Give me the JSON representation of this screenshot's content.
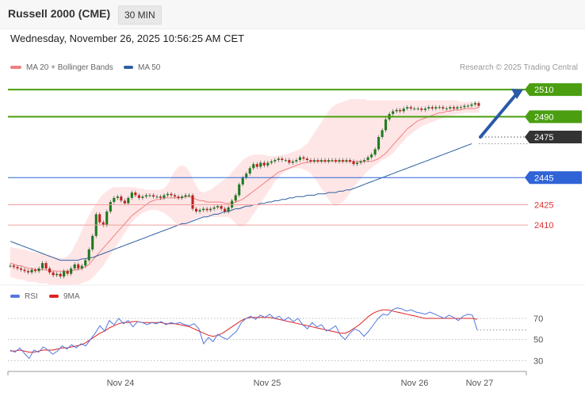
{
  "header": {
    "title": "Russell 2000 (CME)",
    "interval": "30 MIN"
  },
  "timestamp": "Wednesday, November 26, 2025 10:56:25 AM CET",
  "credit": "Research © 2025 Trading Central",
  "colors": {
    "resistance": "#4a9e10",
    "support": "#2f63d6",
    "minor": "#e03030",
    "ma20": "#f08080",
    "ma50": "#3060a0",
    "candle_up": "#1e7a1e",
    "candle_down": "#c02020",
    "arrow": "#2a5aa8",
    "rsi": "#5577dd",
    "rsi_ma": "#dd2222"
  },
  "chart_data": [
    {
      "type": "candlestick",
      "legend": [
        {
          "name": "MA 20 + Bollinger Bands",
          "color": "#f08080"
        },
        {
          "name": "MA 50",
          "color": "#3060a0"
        }
      ],
      "x_ticks": [
        "Nov 24",
        "Nov 25",
        "Nov 26",
        "Nov 27"
      ],
      "ylim": [
        2368,
        2520
      ],
      "levels": [
        {
          "value": 2510,
          "label": "2510",
          "kind": "resistance"
        },
        {
          "value": 2490,
          "label": "2490",
          "kind": "resistance"
        },
        {
          "value": 2475,
          "label": "2475",
          "kind": "last"
        },
        {
          "value": 2445,
          "label": "2445",
          "kind": "support"
        },
        {
          "value": 2425,
          "label": "2425",
          "kind": "minor"
        },
        {
          "value": 2410,
          "label": "2410",
          "kind": "minor"
        }
      ],
      "close": [
        2380,
        2379,
        2378,
        2377,
        2376,
        2375,
        2377,
        2376,
        2378,
        2382,
        2378,
        2375,
        2373,
        2374,
        2372,
        2376,
        2374,
        2378,
        2381,
        2378,
        2380,
        2384,
        2392,
        2402,
        2418,
        2412,
        2410,
        2420,
        2427,
        2430,
        2431,
        2428,
        2426,
        2430,
        2434,
        2432,
        2430,
        2431,
        2432,
        2432,
        2431,
        2431,
        2430,
        2432,
        2433,
        2432,
        2431,
        2430,
        2431,
        2432,
        2432,
        2422,
        2420,
        2421,
        2422,
        2421,
        2422,
        2423,
        2424,
        2422,
        2420,
        2423,
        2428,
        2432,
        2440,
        2445,
        2448,
        2452,
        2455,
        2453,
        2456,
        2454,
        2456,
        2457,
        2458,
        2459,
        2458,
        2458,
        2456,
        2457,
        2458,
        2460,
        2459,
        2458,
        2457,
        2458,
        2457,
        2458,
        2457,
        2458,
        2458,
        2457,
        2458,
        2457,
        2458,
        2457,
        2455,
        2456,
        2457,
        2458,
        2460,
        2462,
        2466,
        2475,
        2480,
        2488,
        2492,
        2494,
        2495,
        2494,
        2496,
        2497,
        2496,
        2496,
        2496,
        2495,
        2496,
        2497,
        2496,
        2497,
        2497,
        2496,
        2496,
        2497,
        2496,
        2497,
        2497,
        2498,
        2498,
        2499,
        2500,
        2498
      ],
      "ma20": [
        2382,
        2381,
        2380,
        2380,
        2379,
        2378,
        2378,
        2377,
        2377,
        2377,
        2377,
        2376,
        2376,
        2376,
        2376,
        2376,
        2376,
        2376,
        2377,
        2377,
        2378,
        2379,
        2381,
        2384,
        2387,
        2390,
        2393,
        2396,
        2399,
        2402,
        2405,
        2408,
        2411,
        2414,
        2417,
        2419,
        2421,
        2423,
        2425,
        2427,
        2428,
        2429,
        2429,
        2430,
        2430,
        2430,
        2430,
        2430,
        2430,
        2431,
        2431,
        2430,
        2429,
        2428,
        2428,
        2427,
        2427,
        2427,
        2427,
        2427,
        2426,
        2426,
        2426,
        2427,
        2428,
        2429,
        2431,
        2433,
        2435,
        2437,
        2439,
        2441,
        2443,
        2445,
        2447,
        2449,
        2450,
        2451,
        2452,
        2453,
        2454,
        2455,
        2456,
        2456,
        2457,
        2457,
        2457,
        2457,
        2457,
        2457,
        2457,
        2457,
        2457,
        2457,
        2457,
        2457,
        2457,
        2457,
        2457,
        2457,
        2457,
        2457,
        2458,
        2459,
        2461,
        2463,
        2466,
        2469,
        2472,
        2475,
        2478,
        2481,
        2483,
        2485,
        2487,
        2488,
        2489,
        2490,
        2491,
        2492,
        2493,
        2493,
        2494,
        2494,
        2495,
        2495,
        2495,
        2496,
        2496,
        2496,
        2496,
        2497
      ],
      "bb_upper": [
        2394,
        2393,
        2393,
        2392,
        2392,
        2391,
        2390,
        2390,
        2389,
        2389,
        2388,
        2387,
        2387,
        2386,
        2386,
        2386,
        2387,
        2390,
        2395,
        2400,
        2406,
        2412,
        2417,
        2422,
        2426,
        2430,
        2433,
        2435,
        2437,
        2438,
        2438,
        2438,
        2438,
        2438,
        2438,
        2438,
        2437,
        2437,
        2436,
        2436,
        2436,
        2436,
        2436,
        2437,
        2440,
        2445,
        2450,
        2453,
        2454,
        2453,
        2450,
        2444,
        2439,
        2435,
        2434,
        2435,
        2436,
        2438,
        2440,
        2442,
        2444,
        2446,
        2449,
        2452,
        2455,
        2458,
        2460,
        2461,
        2462,
        2462,
        2462,
        2462,
        2461,
        2461,
        2461,
        2461,
        2462,
        2462,
        2463,
        2464,
        2465,
        2466,
        2468,
        2470,
        2474,
        2478,
        2482,
        2486,
        2490,
        2494,
        2497,
        2499,
        2500,
        2501,
        2502,
        2503,
        2503,
        2503,
        2503,
        2503,
        2502,
        2502,
        2502,
        2502,
        2502,
        2502,
        2502,
        2502,
        2502,
        2502,
        2502,
        2502,
        2502,
        2502,
        2502,
        2502,
        2502,
        2502,
        2502,
        2502,
        2502,
        2502,
        2502,
        2502,
        2502,
        2502,
        2501,
        2501,
        2501,
        2501,
        2501,
        2501
      ],
      "bb_lower": [
        2372,
        2371,
        2370,
        2370,
        2369,
        2368,
        2368,
        2368,
        2367,
        2367,
        2367,
        2366,
        2366,
        2366,
        2366,
        2366,
        2366,
        2366,
        2366,
        2366,
        2367,
        2368,
        2369,
        2371,
        2374,
        2377,
        2380,
        2384,
        2388,
        2392,
        2396,
        2400,
        2404,
        2408,
        2412,
        2415,
        2417,
        2419,
        2420,
        2421,
        2421,
        2421,
        2420,
        2419,
        2417,
        2415,
        2412,
        2410,
        2410,
        2411,
        2412,
        2414,
        2415,
        2416,
        2416,
        2416,
        2416,
        2416,
        2416,
        2416,
        2416,
        2416,
        2414,
        2411,
        2409,
        2409,
        2411,
        2414,
        2418,
        2422,
        2426,
        2430,
        2434,
        2438,
        2442,
        2445,
        2448,
        2450,
        2451,
        2452,
        2452,
        2452,
        2451,
        2450,
        2448,
        2445,
        2441,
        2437,
        2433,
        2429,
        2425,
        2424,
        2425,
        2427,
        2430,
        2434,
        2438,
        2441,
        2444,
        2447,
        2450,
        2452,
        2454,
        2456,
        2458,
        2459,
        2461,
        2463,
        2466,
        2469,
        2472,
        2475,
        2477,
        2479,
        2481,
        2483,
        2484,
        2485,
        2486,
        2487,
        2488,
        2489,
        2490,
        2491,
        2491,
        2492,
        2492,
        2493,
        2493,
        2493,
        2493,
        2493
      ],
      "ma50": [
        2398,
        2397,
        2396,
        2395,
        2394,
        2393,
        2392,
        2391,
        2390,
        2389,
        2388,
        2387,
        2386,
        2385,
        2384,
        2384,
        2384,
        2384,
        2384,
        2384,
        2385,
        2385,
        2386,
        2386,
        2387,
        2388,
        2389,
        2390,
        2391,
        2392,
        2393,
        2394,
        2395,
        2396,
        2397,
        2398,
        2399,
        2400,
        2401,
        2402,
        2403,
        2404,
        2405,
        2406,
        2407,
        2408,
        2409,
        2410,
        2411,
        2411,
        2412,
        2413,
        2414,
        2415,
        2416,
        2416,
        2417,
        2418,
        2418,
        2419,
        2420,
        2420,
        2421,
        2422,
        2422,
        2423,
        2424,
        2424,
        2425,
        2425,
        2426,
        2426,
        2427,
        2427,
        2428,
        2428,
        2429,
        2429,
        2430,
        2430,
        2431,
        2431,
        2431,
        2432,
        2432,
        2432,
        2433,
        2433,
        2433,
        2434,
        2434,
        2434,
        2435,
        2435,
        2436,
        2436,
        2437,
        2438,
        2439,
        2440,
        2441,
        2442,
        2443,
        2444,
        2445,
        2446,
        2447,
        2448,
        2449,
        2450,
        2451,
        2452,
        2453,
        2454,
        2455,
        2456,
        2457,
        2458,
        2459,
        2460,
        2461,
        2462,
        2463,
        2464,
        2465,
        2466,
        2467,
        2468,
        2469,
        2470
      ],
      "projection": {
        "from": 2475,
        "to": 2510
      }
    },
    {
      "type": "line",
      "legend": [
        {
          "name": "RSI",
          "color": "#5577dd"
        },
        {
          "name": "9MA",
          "color": "#dd2222"
        }
      ],
      "ylim": [
        22,
        85
      ],
      "y_ticks": [
        70,
        50,
        30
      ],
      "rsi": [
        40,
        38,
        42,
        37,
        32,
        40,
        38,
        43,
        40,
        36,
        39,
        44,
        41,
        45,
        42,
        46,
        44,
        50,
        56,
        63,
        58,
        68,
        64,
        70,
        65,
        68,
        62,
        67,
        66,
        64,
        66,
        65,
        67,
        64,
        66,
        65,
        66,
        64,
        63,
        65,
        60,
        46,
        52,
        48,
        55,
        52,
        50,
        54,
        58,
        66,
        70,
        72,
        69,
        73,
        71,
        74,
        70,
        72,
        68,
        71,
        67,
        70,
        64,
        60,
        66,
        62,
        64,
        58,
        60,
        63,
        54,
        50,
        56,
        60,
        58,
        53,
        58,
        64,
        70,
        74,
        73,
        78,
        80,
        79,
        77,
        78,
        76,
        75,
        74,
        76,
        74,
        72,
        70,
        73,
        71,
        68,
        72,
        74,
        73,
        59
      ],
      "ma9": [
        39,
        39,
        40,
        39,
        38,
        38,
        39,
        40,
        40,
        40,
        41,
        42,
        42,
        43,
        44,
        45,
        47,
        50,
        53,
        56,
        58,
        61,
        63,
        65,
        66,
        66,
        67,
        67,
        66,
        66,
        66,
        66,
        66,
        65,
        65,
        65,
        64,
        63,
        62,
        60,
        58,
        56,
        54,
        53,
        54,
        56,
        59,
        62,
        65,
        68,
        70,
        71,
        71,
        71,
        71,
        71,
        70,
        69,
        68,
        67,
        66,
        65,
        64,
        63,
        62,
        61,
        60,
        59,
        58,
        57,
        56,
        56,
        58,
        61,
        64,
        68,
        72,
        75,
        77,
        78,
        78,
        77,
        76,
        75,
        74,
        73,
        72,
        71,
        70,
        70,
        70,
        70,
        70,
        70,
        70,
        70,
        70,
        70,
        70,
        69
      ],
      "last": 59
    }
  ]
}
